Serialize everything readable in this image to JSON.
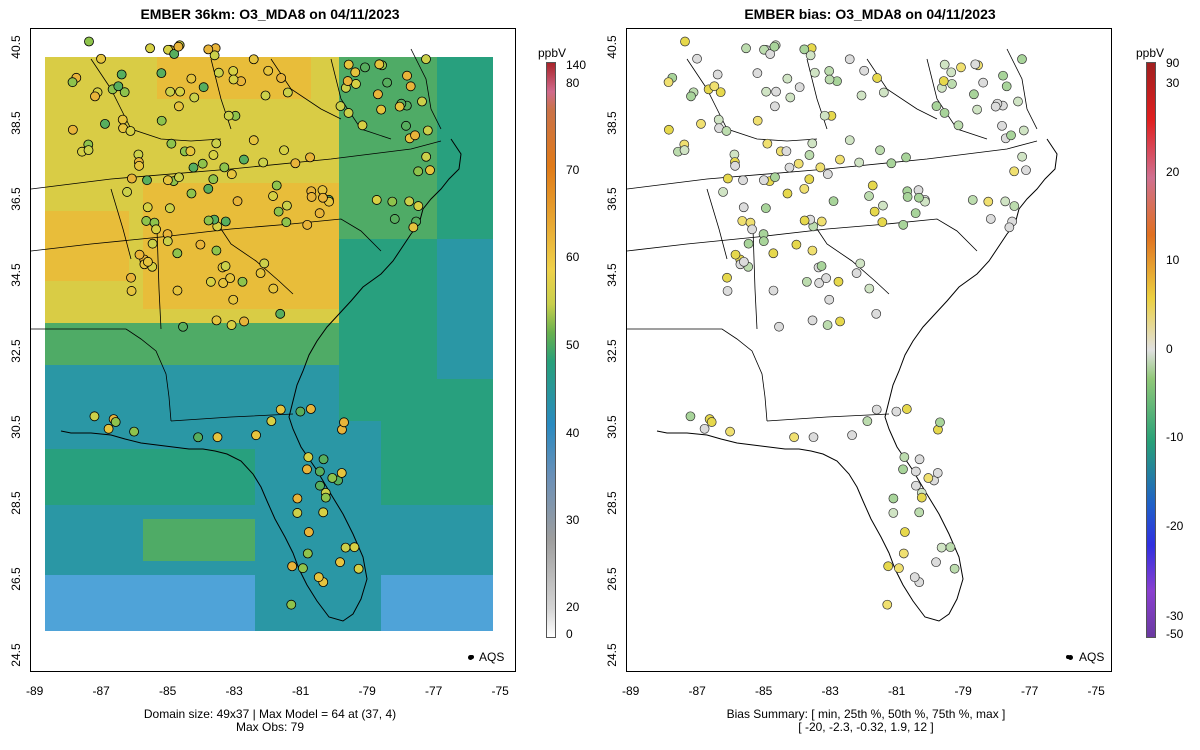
{
  "left": {
    "title": "EMBER 36km: O3_MDA8 on 04/11/2023",
    "footer_line1": "Domain size: 49x37 | Max Model = 64 at (37, 4)",
    "footer_line2": "Max Obs: 79",
    "colorbar_unit": "ppbV",
    "colorbar_labels": [
      "140",
      "80",
      "70",
      "60",
      "50",
      "40",
      "30",
      "20",
      "0"
    ],
    "legend_label": "AQS"
  },
  "right": {
    "title": "EMBER bias: O3_MDA8 on 04/11/2023",
    "footer_line1": "Bias Summary: [ min, 25th %, 50th %, 75th %, max ]",
    "footer_line2": "[ -20,   -2.3,   -0.32,   1.9,   12 ]",
    "colorbar_unit": "ppbV",
    "colorbar_labels": [
      "90",
      "30",
      "20",
      "10",
      "0",
      "-10",
      "-20",
      "-30",
      "-50"
    ],
    "legend_label": "AQS"
  },
  "axes": {
    "x_ticks": [
      "-89",
      "-87",
      "-85",
      "-83",
      "-81",
      "-79",
      "-77",
      "-75"
    ],
    "y_ticks": [
      "40.5",
      "38.5",
      "36.5",
      "34.5",
      "32.5",
      "30.5",
      "28.5",
      "26.5",
      "24.5"
    ]
  },
  "colors": {
    "model_high": "#e6a92b",
    "model_mid": "#8cc04a",
    "model_low": "#2f86c3",
    "bias_neutral": "#dcdcdc"
  }
}
